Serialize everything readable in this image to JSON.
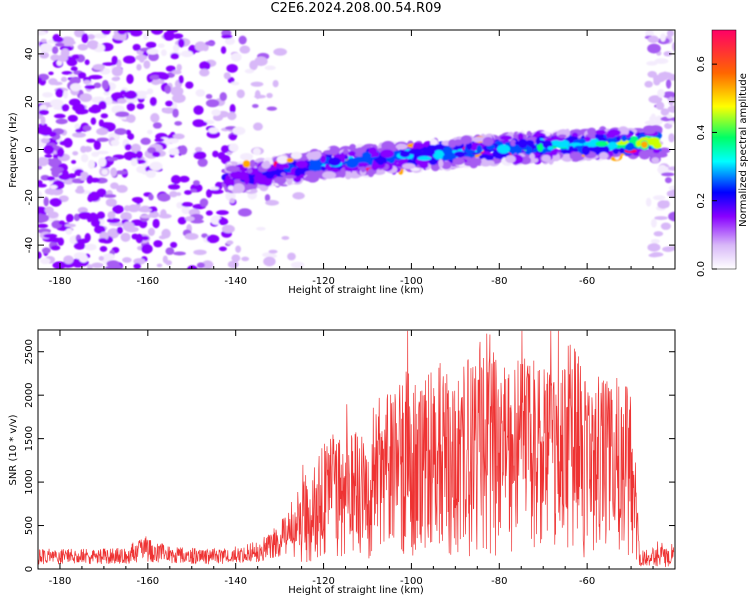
{
  "title": "C2E6.2024.208.00.54.R09",
  "chart_data": [
    {
      "type": "heatmap",
      "xlabel": "Height of straight line (km)",
      "ylabel": "Frequency (Hz)",
      "xlim": [
        -185,
        -40
      ],
      "ylim": [
        -50,
        50
      ],
      "x_ticks": [
        -180,
        -160,
        -140,
        -120,
        -100,
        -80,
        -60
      ],
      "y_ticks": [
        -40,
        -20,
        0,
        20,
        40
      ],
      "grid": false,
      "colorbar": {
        "label": "Normalized spectral amplitude",
        "range": [
          0.0,
          0.7
        ],
        "ticks": [
          0.0,
          0.2,
          0.4,
          0.6
        ],
        "colormap": [
          "#ffffff",
          "#d8b8f8",
          "#8800ff",
          "#0000ff",
          "#00ffff",
          "#00ff66",
          "#ffff00",
          "#ff6600",
          "#ff0066"
        ]
      },
      "signal_band": {
        "x": [
          -140,
          -120,
          -100,
          -80,
          -60,
          -45
        ],
        "frequency": [
          -12,
          -6,
          -3,
          0,
          2,
          3
        ],
        "amplitude": [
          0.25,
          0.35,
          0.35,
          0.35,
          0.4,
          0.5
        ]
      }
    },
    {
      "type": "line",
      "xlabel": "Height of straight line (km)",
      "ylabel": "SNR (10 * v/v)",
      "xlim": [
        -185,
        -40
      ],
      "ylim": [
        0,
        2750
      ],
      "x_ticks": [
        -180,
        -160,
        -140,
        -120,
        -100,
        -80,
        -60
      ],
      "y_ticks": [
        0,
        500,
        1000,
        1500,
        2000,
        2500
      ],
      "grid": false,
      "series": [
        {
          "color": "#ee3333",
          "x": [
            -185,
            -175,
            -165,
            -161,
            -155,
            -145,
            -138,
            -133,
            -128,
            -124,
            -120,
            -115,
            -112,
            -108,
            -104,
            -101,
            -97,
            -93,
            -90,
            -86,
            -82,
            -80,
            -77,
            -73,
            -70,
            -66,
            -63,
            -61,
            -58,
            -55,
            -52,
            -50,
            -48,
            -46,
            -44,
            -41
          ],
          "y": [
            150,
            150,
            160,
            250,
            170,
            150,
            180,
            250,
            420,
            650,
            850,
            1000,
            950,
            1150,
            1200,
            1350,
            1300,
            1450,
            1250,
            1500,
            1650,
            1450,
            1400,
            1550,
            1350,
            1500,
            1550,
            1350,
            1400,
            1250,
            1350,
            1150,
            150,
            100,
            200,
            150
          ]
        }
      ]
    }
  ]
}
